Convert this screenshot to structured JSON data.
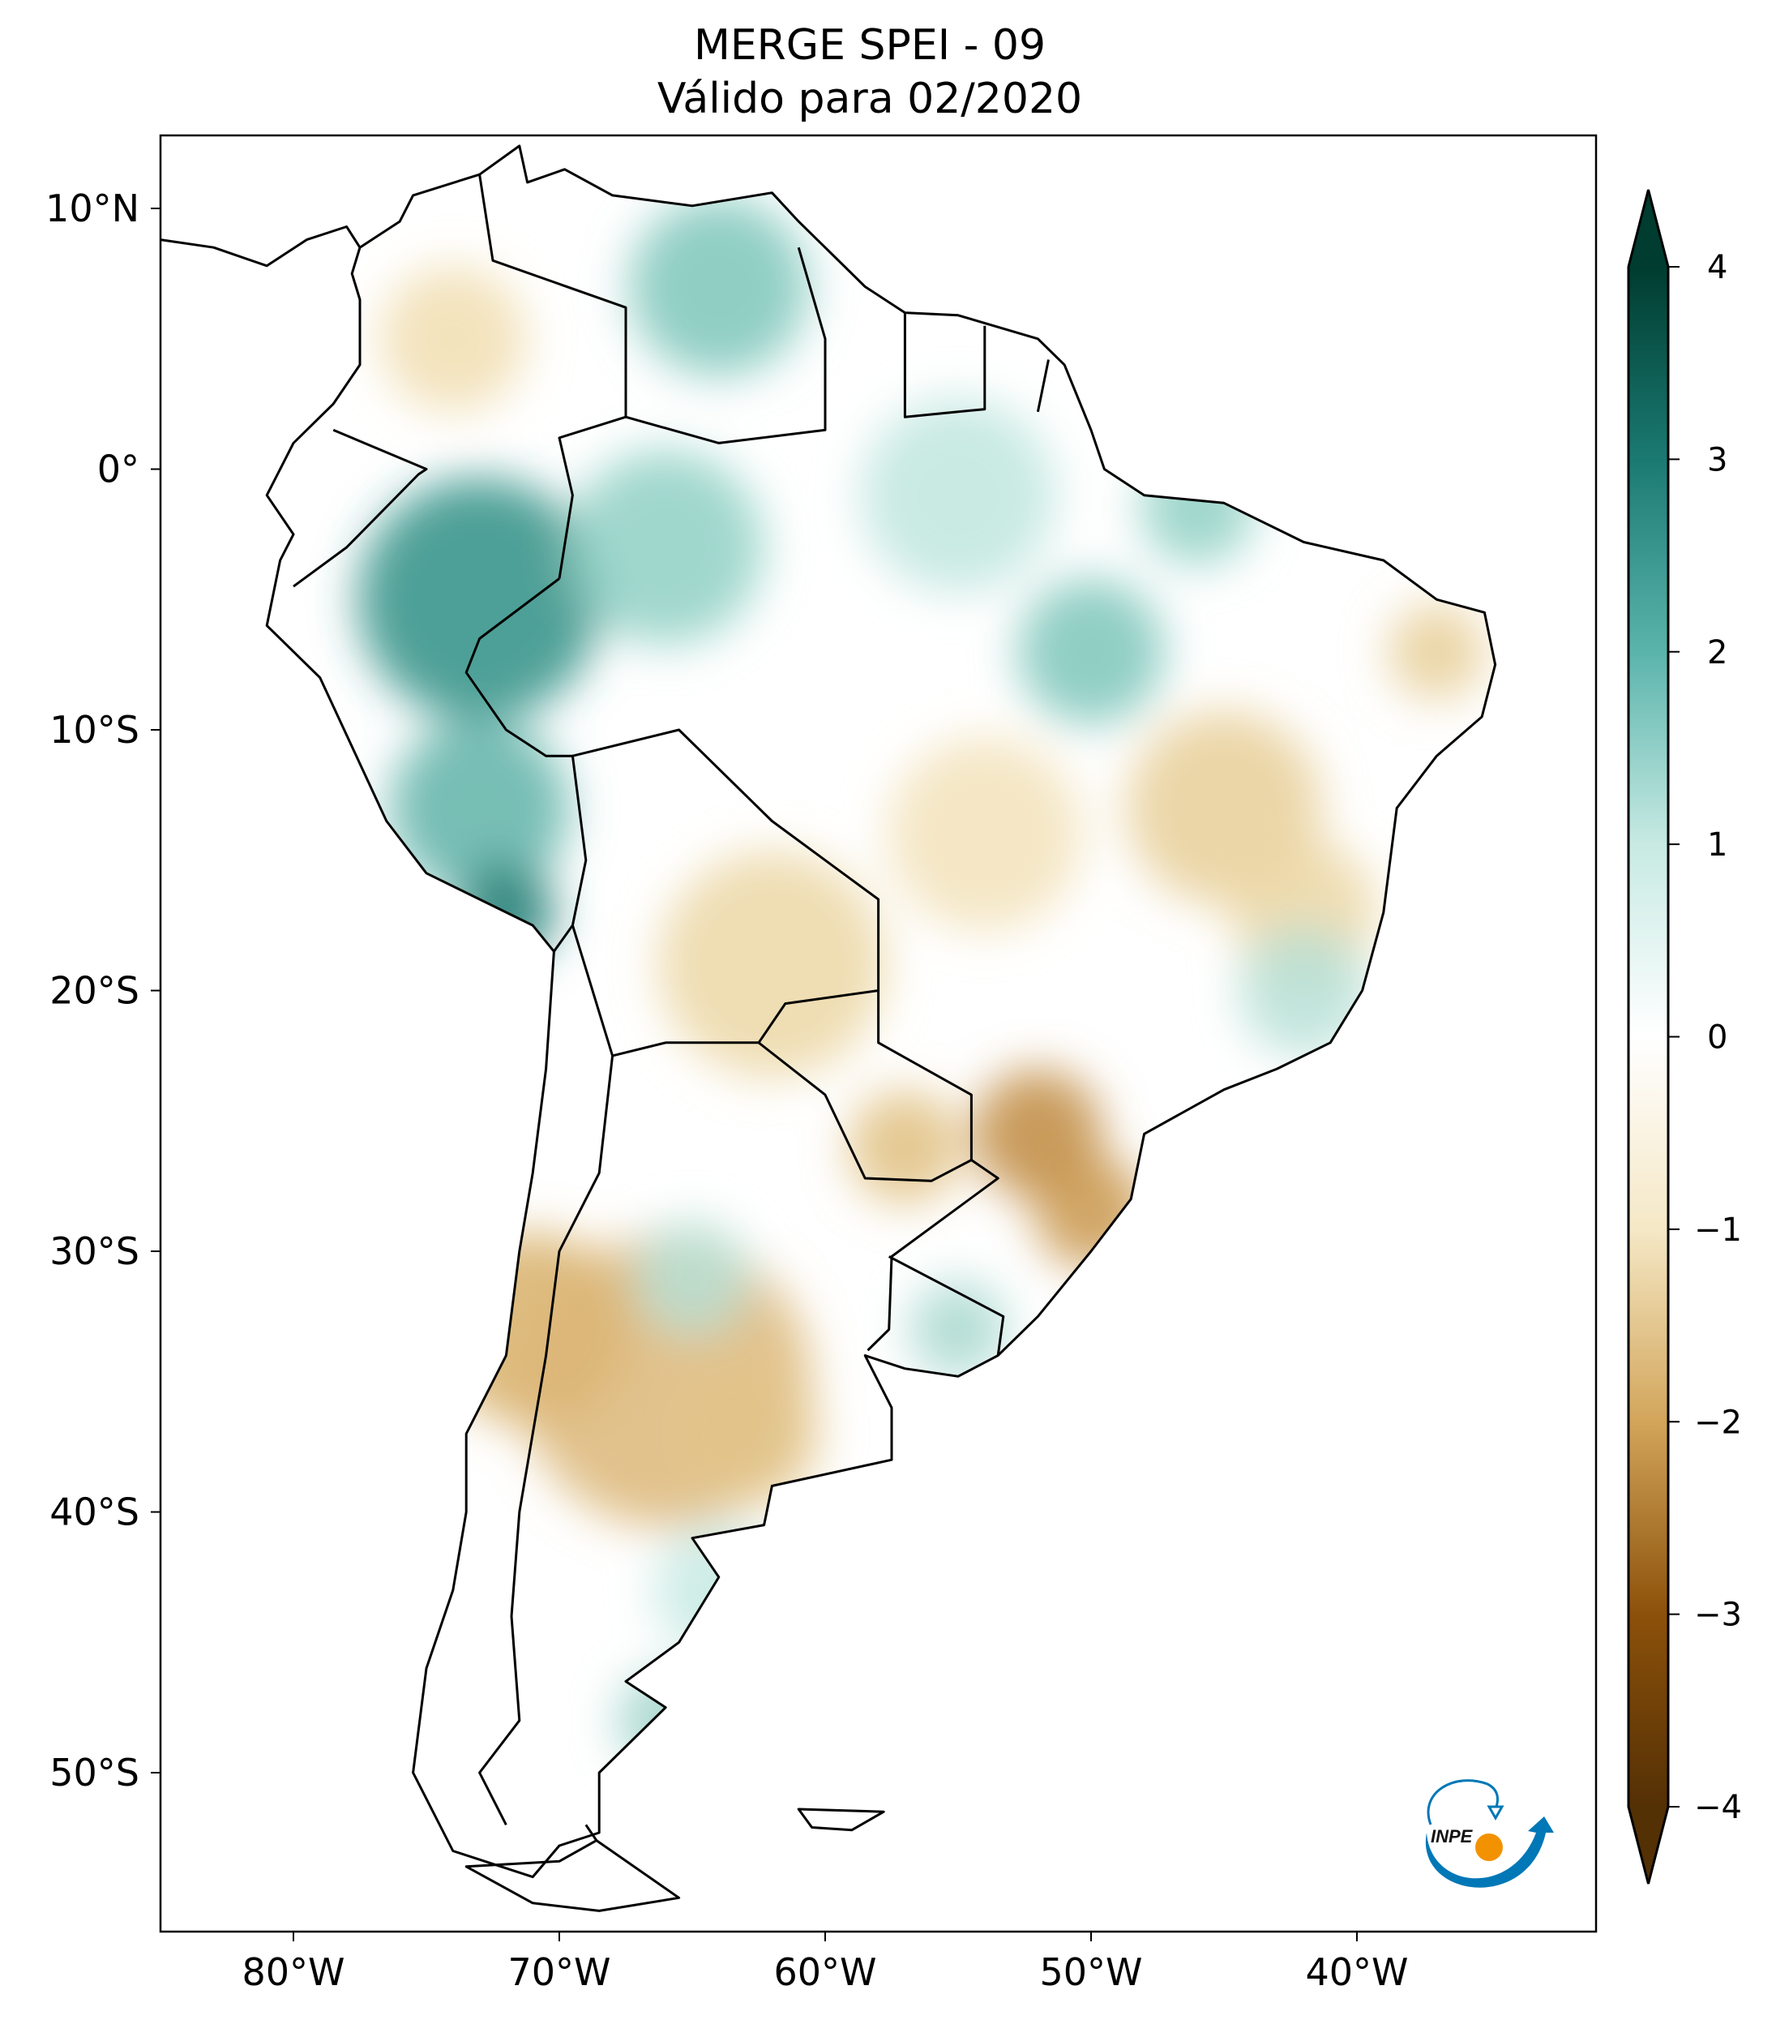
{
  "title": {
    "line1": "MERGE   SPEI - 09",
    "line2": "Válido para 02/2020"
  },
  "chart_data": {
    "type": "heatmap",
    "map": "South America",
    "variable": "SPEI - 09",
    "lon_range": [
      -85,
      -31
    ],
    "lat_range": [
      -56,
      12.8
    ],
    "x_ticks": [
      {
        "value": -80,
        "label": "80°W"
      },
      {
        "value": -70,
        "label": "70°W"
      },
      {
        "value": -60,
        "label": "60°W"
      },
      {
        "value": -50,
        "label": "50°W"
      },
      {
        "value": -40,
        "label": "40°W"
      }
    ],
    "y_ticks": [
      {
        "value": 10,
        "label": "10°N"
      },
      {
        "value": 0,
        "label": "0°"
      },
      {
        "value": -10,
        "label": "10°S"
      },
      {
        "value": -20,
        "label": "20°S"
      },
      {
        "value": -30,
        "label": "30°S"
      },
      {
        "value": -40,
        "label": "40°S"
      },
      {
        "value": -50,
        "label": "50°S"
      }
    ],
    "colorbar": {
      "colormap": "BrBG",
      "range": [
        -4,
        4
      ],
      "extend": "both",
      "ticks": [
        "4",
        "3",
        "2",
        "1",
        "0",
        "-1",
        "-2",
        "-3",
        "-4"
      ],
      "colors": {
        "-4": "#543005",
        "-3": "#8c510a",
        "-2": "#d2a55a",
        "-1": "#f5e8c6",
        "0": "#ffffff",
        "1": "#c7eae3",
        "2": "#5ab4ac",
        "3": "#1a7a72",
        "4": "#003c30"
      }
    },
    "grid": false
  },
  "logo": {
    "text": "INPE",
    "colors": {
      "blue": "#0077b6",
      "orange": "#f39200"
    }
  }
}
